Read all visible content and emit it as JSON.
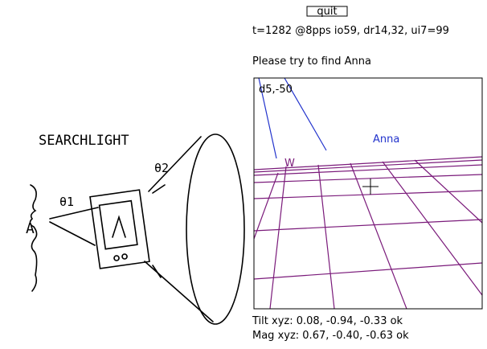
{
  "sketch": {
    "title": "SEARCHLIGHT",
    "theta1": "θ1",
    "theta2": "θ2",
    "eye_label": "A"
  },
  "ui": {
    "quit_button": "quit",
    "status": "t=1282 @8pps io59, dr14,32, ui7=99",
    "prompt": "Please try to find Anna",
    "view": {
      "offset": "d5,-50",
      "target": "Anna",
      "marker": "W"
    },
    "tilt": "Tilt xyz: 0.08, -0.94, -0.33 ok",
    "mag": "Mag xyz: 0.67, -0.40, -0.63 ok"
  }
}
